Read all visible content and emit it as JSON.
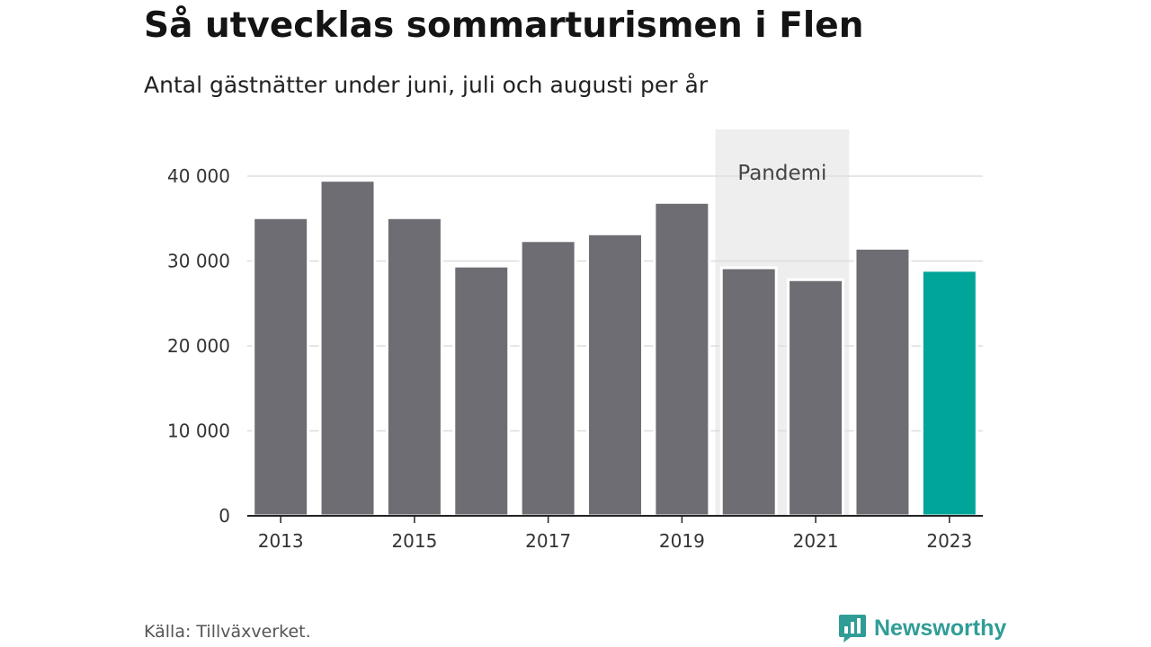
{
  "header": {
    "title": "Så utvecklas sommarturismen i Flen",
    "subtitle": "Antal gästnätter under juni, juli och augusti per år"
  },
  "footer": {
    "source": "Källa: Tillväxverket.",
    "brand": "Newsworthy"
  },
  "colors": {
    "bar": "#6e6d73",
    "highlight": "#00a59a",
    "shade": "#eeeeee",
    "grid": "#dddddd",
    "axis": "#222222",
    "brand": "#2f9d96"
  },
  "chart_data": {
    "type": "bar",
    "title": "Så utvecklas sommarturismen i Flen",
    "subtitle": "Antal gästnätter under juni, juli och augusti per år",
    "categories": [
      "2013",
      "2014",
      "2015",
      "2016",
      "2017",
      "2018",
      "2019",
      "2020",
      "2021",
      "2022",
      "2023"
    ],
    "values": [
      35100,
      39500,
      35100,
      29400,
      32400,
      33200,
      36900,
      29200,
      27800,
      31500,
      28900
    ],
    "highlight_category": "2023",
    "ylim": [
      0,
      45500
    ],
    "yticks": [
      0,
      10000,
      20000,
      30000,
      40000
    ],
    "ytick_labels": [
      "0",
      "10 000",
      "20 000",
      "30 000",
      "40 000"
    ],
    "xtick_labels": [
      "2013",
      "2015",
      "2017",
      "2019",
      "2021",
      "2023"
    ],
    "xlabel": "",
    "ylabel": "",
    "grid": true,
    "legend": "none",
    "annotation": {
      "text": "Pandemi",
      "from": "2020",
      "to": "2021"
    }
  }
}
